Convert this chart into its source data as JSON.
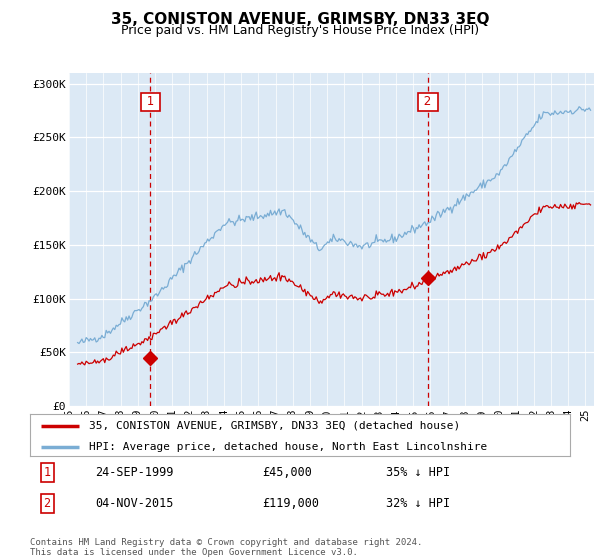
{
  "title": "35, CONISTON AVENUE, GRIMSBY, DN33 3EQ",
  "subtitle": "Price paid vs. HM Land Registry's House Price Index (HPI)",
  "title_fontsize": 11,
  "subtitle_fontsize": 9,
  "sale1_date": "24-SEP-1999",
  "sale1_price": 45000,
  "sale1_label": "35% ↓ HPI",
  "sale2_date": "04-NOV-2015",
  "sale2_price": 119000,
  "sale2_label": "32% ↓ HPI",
  "sale1_year": 1999.73,
  "sale2_year": 2015.84,
  "legend_line1": "35, CONISTON AVENUE, GRIMSBY, DN33 3EQ (detached house)",
  "legend_line2": "HPI: Average price, detached house, North East Lincolnshire",
  "footnote": "Contains HM Land Registry data © Crown copyright and database right 2024.\nThis data is licensed under the Open Government Licence v3.0.",
  "house_color": "#cc0000",
  "hpi_color": "#7aadd4",
  "vline_color": "#cc0000",
  "grid_color": "#cccccc",
  "bg_color": "#ffffff",
  "chart_bg": "#dce9f5",
  "ylim_min": 0,
  "ylim_max": 310000,
  "yticks": [
    0,
    50000,
    100000,
    150000,
    200000,
    250000,
    300000
  ],
  "ytick_labels": [
    "£0",
    "£50K",
    "£100K",
    "£150K",
    "£200K",
    "£250K",
    "£300K"
  ],
  "xmin": 1995.4,
  "xmax": 2025.5
}
